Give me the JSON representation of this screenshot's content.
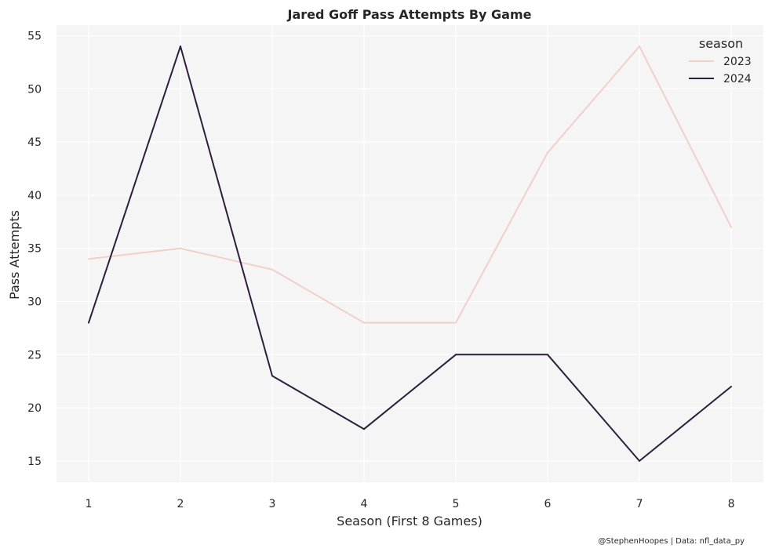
{
  "chart_data": {
    "type": "line",
    "title": "Jared Goff Pass Attempts By Game",
    "xlabel": "Season (First 8 Games)",
    "ylabel": "Pass Attempts",
    "x": [
      1,
      2,
      3,
      4,
      5,
      6,
      7,
      8
    ],
    "xticks": [
      "1",
      "2",
      "3",
      "4",
      "5",
      "6",
      "7",
      "8"
    ],
    "yticks": [
      "15",
      "20",
      "25",
      "30",
      "35",
      "40",
      "45",
      "50",
      "55"
    ],
    "xlim": [
      0.65,
      8.35
    ],
    "ylim": [
      13,
      56
    ],
    "grid": true,
    "legend": {
      "title": "season",
      "placement": "top-right"
    },
    "series": [
      {
        "name": "2023",
        "color": "#f0d0c8",
        "values": [
          34,
          35,
          33,
          28,
          28,
          44,
          54,
          37
        ]
      },
      {
        "name": "2024",
        "color": "#2d1e3e",
        "values": [
          28,
          54,
          23,
          18,
          25,
          25,
          15,
          22
        ]
      }
    ],
    "credit": "@StephenHoopes | Data: nfl_data_py"
  },
  "colors": {
    "plot_background": "#f5f5f5",
    "grid": "#ffffff",
    "text": "#262626"
  }
}
